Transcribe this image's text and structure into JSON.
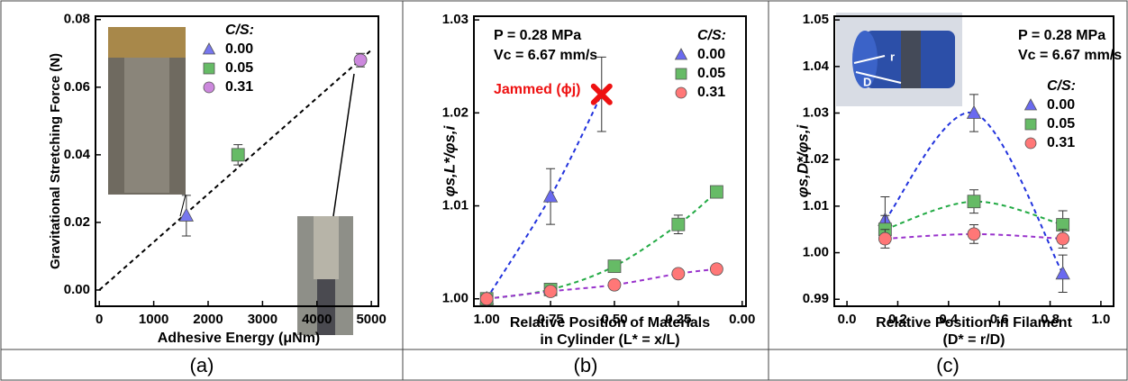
{
  "chart_data": [
    {
      "type": "scatter",
      "panel_label": "(a)",
      "xlabel": [
        "Adhesive Energy (μNm)"
      ],
      "ylabel": "Gravitational Stretching Force (N)",
      "legend_title": "C/S:",
      "xlim": [
        -70,
        5130
      ],
      "ylim": [
        -0.0048,
        0.081
      ],
      "xticks": [
        0,
        1000,
        2000,
        3000,
        4000,
        5000
      ],
      "yticks": [
        {
          "value": 0,
          "label": "0.00"
        },
        0.02,
        0.04,
        0.06,
        {
          "value": 0.08,
          "label": "0.08"
        }
      ],
      "series": [
        {
          "name": "0.00",
          "color": "#7777ee",
          "marker": "triangle",
          "x": [
            1600
          ],
          "values": [
            0.022
          ],
          "errors": [
            0.006
          ]
        },
        {
          "name": "0.05",
          "color": "#66bb66",
          "marker": "square",
          "x": [
            2550
          ],
          "values": [
            0.04
          ],
          "errors": [
            0.003
          ]
        },
        {
          "name": "0.31",
          "color": "#cc88dd",
          "marker": "circle",
          "x": [
            4800
          ],
          "values": [
            0.068
          ],
          "errors": [
            0.002
          ]
        }
      ],
      "fit": {
        "x": [
          0,
          5000
        ],
        "values": [
          0,
          0.071
        ],
        "color": "#000000"
      }
    },
    {
      "type": "scatter",
      "panel_label": "(b)",
      "xlabel": [
        "Relative Position of Materials",
        "in Cylinder (L* = x/L)"
      ],
      "ylabel": "φs,L*/φs,i",
      "legend_title": "C/S:",
      "annotations": [
        "P = 0.28 MPa",
        "Vc = 6.67 mm/s"
      ],
      "xlim": [
        1.05,
        -0.015
      ],
      "ylim": [
        0.9992,
        1.0304
      ],
      "xticks": [
        {
          "value": 1,
          "label": "1.00"
        },
        0.75,
        {
          "value": 0.5,
          "label": "0.50"
        },
        0.25,
        {
          "value": 0,
          "label": "0.00"
        }
      ],
      "yticks": [
        {
          "value": 1,
          "label": "1.00"
        },
        1.01,
        1.02,
        1.03
      ],
      "series": [
        {
          "name": "0.00",
          "color": "#6a6af0",
          "marker": "triangle",
          "x": [
            1.0,
            0.75
          ],
          "values": [
            1.0,
            1.011
          ],
          "errors": [
            0.0002,
            0.003
          ]
        },
        {
          "name": "0.05",
          "color": "#66bb66",
          "marker": "square",
          "x": [
            1.0,
            0.75,
            0.5,
            0.25,
            0.1
          ],
          "values": [
            1.0,
            1.001,
            1.0035,
            1.008,
            1.0115
          ],
          "errors": [
            0.0002,
            0.0003,
            0.0005,
            0.001,
            0.0005
          ]
        },
        {
          "name": "0.31",
          "color": "#ff7777",
          "marker": "circle",
          "x": [
            1.0,
            0.75,
            0.5,
            0.25,
            0.1
          ],
          "values": [
            1.0,
            1.0008,
            1.0015,
            1.0027,
            1.0032
          ],
          "errors": [
            0.0002,
            0.0002,
            0.0002,
            0.0003,
            0.0004
          ]
        }
      ],
      "jammed": {
        "label": "Jammed (ϕj)",
        "color": "#ee1111",
        "x": 0.55,
        "value": 1.022,
        "error": 0.004
      }
    },
    {
      "type": "scatter",
      "panel_label": "(c)",
      "xlabel": [
        "Relative Position in Filament",
        "(D* = r/D)"
      ],
      "ylabel": "φs,D*/φs,i",
      "legend_title": "C/S:",
      "annotations": [
        "P = 0.28 MPa",
        "Vc = 6.67 mm/s"
      ],
      "xlim": [
        -0.05,
        1.05
      ],
      "ylim": [
        0.9885,
        1.0508
      ],
      "xticks": [
        {
          "value": 0,
          "label": "0.0"
        },
        0.2,
        0.4,
        0.6,
        0.8,
        {
          "value": 1,
          "label": "1.0"
        }
      ],
      "yticks": [
        0.99,
        {
          "value": 1,
          "label": "1.00"
        },
        1.01,
        1.02,
        1.03,
        1.04,
        1.05
      ],
      "series": [
        {
          "name": "0.00",
          "color": "#6a6af0",
          "marker": "triangle",
          "x": [
            0.15,
            0.5,
            0.85
          ],
          "values": [
            1.007,
            1.03,
            0.9955
          ],
          "errors": [
            0.005,
            0.004,
            0.004
          ]
        },
        {
          "name": "0.05",
          "color": "#66bb66",
          "marker": "square",
          "x": [
            0.15,
            0.5,
            0.85
          ],
          "values": [
            1.005,
            1.011,
            1.006
          ],
          "errors": [
            0.003,
            0.0025,
            0.003
          ]
        },
        {
          "name": "0.31",
          "color": "#ff7777",
          "marker": "circle",
          "x": [
            0.15,
            0.5,
            0.85
          ],
          "values": [
            1.003,
            1.004,
            1.003
          ],
          "errors": [
            0.002,
            0.002,
            0.002
          ]
        }
      ]
    }
  ]
}
